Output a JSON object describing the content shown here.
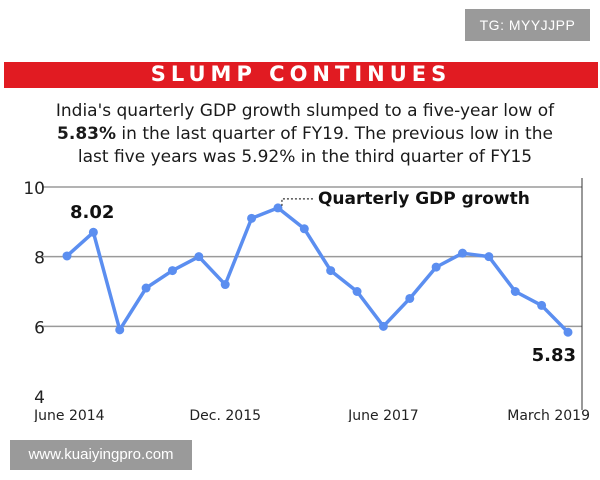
{
  "watermarks": {
    "top": "TG: MYYJJPP",
    "bottom": "www.kuaiyingpro.com"
  },
  "headline": "SLUMP CONTINUES",
  "subtitle": {
    "line1": "India's quarterly GDP growth slumped to a five-year low of",
    "line2_bold": "5.83%",
    "line2_rest": " in the last quarter of FY19. The previous low in the",
    "line3": "last five years was 5.92% in the third quarter of FY15"
  },
  "colors": {
    "headline_bar": "#e11b22",
    "line": "#5b8ef0",
    "grid": "#9a9a9a"
  },
  "chart_data": {
    "type": "line",
    "title": "SLUMP CONTINUES",
    "ylim": [
      4,
      10
    ],
    "yticks": [
      4,
      6,
      8,
      10
    ],
    "grid": true,
    "x_tick_labels": [
      {
        "label": "June 2014",
        "index": 0
      },
      {
        "label": "Dec. 2015",
        "index": 6
      },
      {
        "label": "June 2017",
        "index": 12
      },
      {
        "label": "March 2019",
        "index": 19
      }
    ],
    "series": [
      {
        "name": "Quarterly GDP growth",
        "values": [
          8.02,
          8.7,
          5.9,
          7.1,
          7.6,
          8.0,
          7.2,
          9.1,
          9.4,
          8.8,
          7.6,
          7.0,
          6.0,
          6.8,
          7.7,
          8.1,
          8.0,
          7.0,
          6.6,
          5.83
        ]
      }
    ],
    "annotations": [
      {
        "text": "8.02",
        "index": 0
      },
      {
        "text": "5.83",
        "index": 19
      },
      {
        "text": "Quarterly GDP growth",
        "index": 8
      }
    ]
  }
}
